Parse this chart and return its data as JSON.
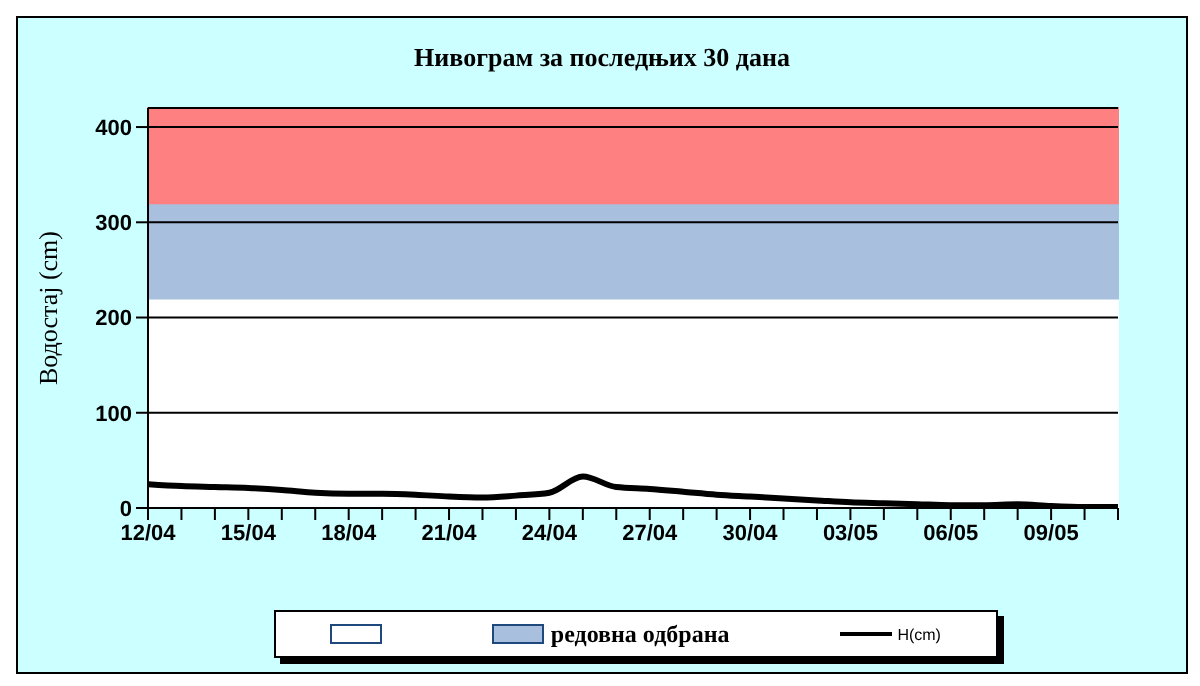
{
  "chart_data": {
    "type": "line",
    "title": "Нивограм за последњих 30 дана",
    "ylabel": "Водостај (cm)",
    "categories": [
      "12/04",
      null,
      null,
      "15/04",
      null,
      null,
      "18/04",
      null,
      null,
      "21/04",
      null,
      null,
      "24/04",
      null,
      null,
      "27/04",
      null,
      null,
      "30/04",
      null,
      null,
      "03/05",
      null,
      null,
      "06/05",
      null,
      null,
      "09/05",
      null,
      null
    ],
    "series": [
      {
        "name": "H(cm)",
        "color": "#000000",
        "values": [
          25,
          23,
          22,
          21,
          19,
          16,
          15,
          15,
          14,
          12,
          11,
          13,
          16,
          33,
          22,
          20,
          17,
          14,
          12,
          10,
          8,
          6,
          5,
          4,
          3,
          3,
          4,
          2,
          1,
          1
        ]
      }
    ],
    "bands": [
      {
        "axis": "y",
        "from": 0,
        "to": 220,
        "label": null,
        "color": "#ffffff"
      },
      {
        "axis": "y",
        "from": 220,
        "to": 320,
        "label": "редовна одбрана",
        "color": "#a8bfdd"
      },
      {
        "axis": "y",
        "from": 320,
        "to": 420,
        "color": "#ff8080"
      }
    ],
    "ylim": [
      0,
      420
    ],
    "yticks": [
      0,
      100,
      200,
      300,
      400
    ],
    "grid": "y",
    "legend": "bottom",
    "marker": "none",
    "line_style": "solid"
  }
}
